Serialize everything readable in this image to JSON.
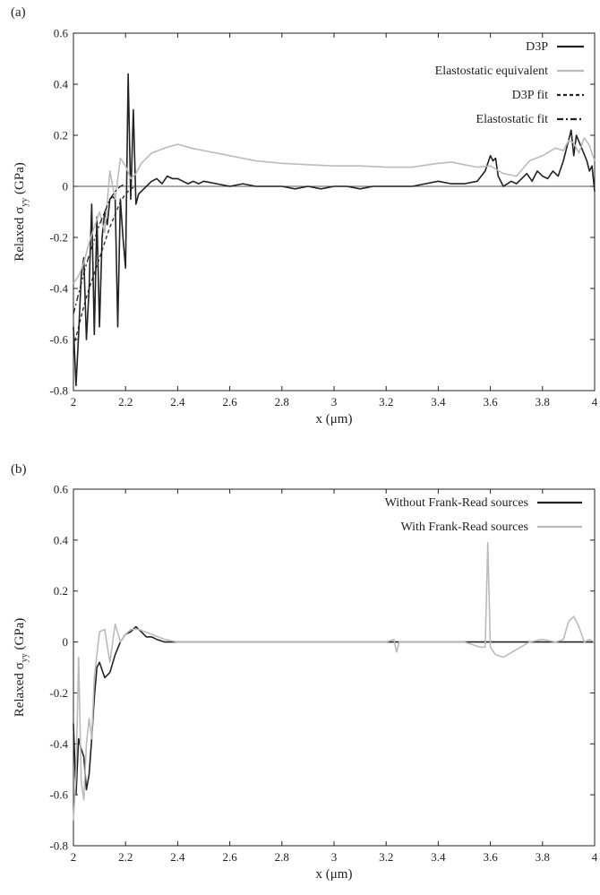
{
  "chart_data": [
    {
      "type": "line",
      "panel_label": "(a)",
      "xlabel": "x (μm)",
      "ylabel_main": "Relaxed σ",
      "ylabel_sub": "yy",
      "ylabel_unit": " (GPa)",
      "xlim": [
        2,
        4
      ],
      "ylim": [
        -0.8,
        0.6
      ],
      "xticks": [
        2,
        2.2,
        2.4,
        2.6,
        2.8,
        3,
        3.2,
        3.4,
        3.6,
        3.8,
        4
      ],
      "xtick_labels": [
        "2",
        "2.2",
        "2.4",
        "2.6",
        "2.8",
        "3",
        "3.2",
        "3.4",
        "3.6",
        "3.8",
        "4"
      ],
      "yticks": [
        -0.8,
        -0.6,
        -0.4,
        -0.2,
        0,
        0.2,
        0.4,
        0.6
      ],
      "ytick_labels": [
        "-0.8",
        "-0.6",
        "-0.4",
        "-0.2",
        "0",
        "0.2",
        "0.4",
        "0.6"
      ],
      "zero_line": true,
      "legend_position": "top-right",
      "series": [
        {
          "name": "D3P",
          "color": "#222222",
          "style": "solid",
          "x": [
            2.0,
            2.01,
            2.02,
            2.03,
            2.04,
            2.05,
            2.06,
            2.07,
            2.08,
            2.09,
            2.1,
            2.11,
            2.12,
            2.13,
            2.14,
            2.15,
            2.16,
            2.17,
            2.18,
            2.19,
            2.2,
            2.21,
            2.22,
            2.23,
            2.24,
            2.25,
            2.26,
            2.28,
            2.3,
            2.32,
            2.34,
            2.36,
            2.38,
            2.4,
            2.42,
            2.44,
            2.46,
            2.48,
            2.5,
            2.55,
            2.6,
            2.65,
            2.7,
            2.75,
            2.8,
            2.85,
            2.9,
            2.95,
            3.0,
            3.05,
            3.1,
            3.15,
            3.2,
            3.25,
            3.3,
            3.35,
            3.4,
            3.45,
            3.5,
            3.55,
            3.58,
            3.6,
            3.61,
            3.62,
            3.63,
            3.65,
            3.68,
            3.7,
            3.72,
            3.74,
            3.76,
            3.78,
            3.8,
            3.82,
            3.84,
            3.86,
            3.88,
            3.9,
            3.91,
            3.92,
            3.93,
            3.95,
            3.97,
            3.98,
            3.99,
            4.0
          ],
          "y": [
            -0.55,
            -0.78,
            -0.58,
            -0.35,
            -0.28,
            -0.6,
            -0.4,
            -0.07,
            -0.58,
            -0.12,
            -0.55,
            -0.2,
            -0.1,
            -0.15,
            -0.05,
            -0.04,
            -0.05,
            -0.55,
            -0.05,
            -0.2,
            -0.32,
            0.44,
            -0.05,
            0.3,
            -0.07,
            -0.03,
            -0.02,
            0.0,
            0.02,
            0.03,
            0.01,
            0.04,
            0.03,
            0.03,
            0.02,
            0.01,
            0.02,
            0.01,
            0.02,
            0.01,
            0.0,
            0.01,
            0.0,
            0.0,
            0.0,
            -0.01,
            0.0,
            -0.01,
            0.0,
            0.0,
            -0.01,
            0.0,
            0.0,
            0.0,
            0.0,
            0.01,
            0.02,
            0.01,
            0.01,
            0.02,
            0.06,
            0.12,
            0.1,
            0.11,
            0.04,
            0.0,
            0.02,
            0.01,
            0.03,
            0.05,
            0.02,
            0.06,
            0.04,
            0.03,
            0.06,
            0.04,
            0.1,
            0.18,
            0.22,
            0.12,
            0.2,
            0.15,
            0.1,
            0.06,
            0.08,
            -0.02
          ]
        },
        {
          "name": "Elastostatic equivalent",
          "color": "#bbbbbb",
          "style": "solid",
          "x": [
            2.0,
            2.02,
            2.04,
            2.06,
            2.08,
            2.1,
            2.12,
            2.14,
            2.16,
            2.18,
            2.2,
            2.22,
            2.24,
            2.26,
            2.3,
            2.35,
            2.4,
            2.45,
            2.5,
            2.6,
            2.7,
            2.8,
            2.9,
            3.0,
            3.1,
            3.2,
            3.3,
            3.4,
            3.45,
            3.5,
            3.55,
            3.6,
            3.65,
            3.7,
            3.75,
            3.8,
            3.85,
            3.88,
            3.9,
            3.92,
            3.94,
            3.96,
            3.98,
            4.0
          ],
          "y": [
            -0.38,
            -0.35,
            -0.3,
            -0.22,
            -0.16,
            -0.1,
            -0.18,
            0.06,
            -0.05,
            0.11,
            0.08,
            0.03,
            0.05,
            0.09,
            0.13,
            0.15,
            0.165,
            0.15,
            0.14,
            0.12,
            0.1,
            0.09,
            0.085,
            0.08,
            0.08,
            0.075,
            0.075,
            0.09,
            0.095,
            0.085,
            0.075,
            0.08,
            0.05,
            0.04,
            0.1,
            0.12,
            0.15,
            0.14,
            0.18,
            0.17,
            0.13,
            0.19,
            0.16,
            0.1
          ]
        },
        {
          "name": "D3P fit",
          "color": "#222222",
          "style": "dashed",
          "x": [
            2.0,
            2.02,
            2.04,
            2.06,
            2.08,
            2.1,
            2.12,
            2.14,
            2.16,
            2.18,
            2.2,
            2.22,
            2.24
          ],
          "y": [
            -0.63,
            -0.55,
            -0.47,
            -0.4,
            -0.34,
            -0.28,
            -0.22,
            -0.16,
            -0.11,
            -0.06,
            -0.03,
            -0.01,
            0.0
          ]
        },
        {
          "name": "Elastostatic fit",
          "color": "#222222",
          "style": "dashdot",
          "x": [
            2.0,
            2.02,
            2.04,
            2.06,
            2.08,
            2.1,
            2.12,
            2.14,
            2.16,
            2.18,
            2.2
          ],
          "y": [
            -0.5,
            -0.42,
            -0.34,
            -0.27,
            -0.21,
            -0.15,
            -0.1,
            -0.05,
            -0.02,
            0.0,
            0.01
          ]
        }
      ]
    },
    {
      "type": "line",
      "panel_label": "(b)",
      "xlabel": "x (μm)",
      "ylabel_main": "Relaxed σ",
      "ylabel_sub": "yy",
      "ylabel_unit": " (GPa)",
      "xlim": [
        2,
        4
      ],
      "ylim": [
        -0.8,
        0.6
      ],
      "xticks": [
        2,
        2.2,
        2.4,
        2.6,
        2.8,
        3,
        3.2,
        3.4,
        3.6,
        3.8,
        4
      ],
      "xtick_labels": [
        "2",
        "2.2",
        "2.4",
        "2.6",
        "2.8",
        "3",
        "3.2",
        "3.4",
        "3.6",
        "3.8",
        "4"
      ],
      "yticks": [
        -0.8,
        -0.6,
        -0.4,
        -0.2,
        0,
        0.2,
        0.4,
        0.6
      ],
      "ytick_labels": [
        "-0.8",
        "-0.6",
        "-0.4",
        "-0.2",
        "0",
        "0.2",
        "0.4",
        "0.6"
      ],
      "zero_line": false,
      "legend_position": "top-right",
      "series": [
        {
          "name": "Without Frank-Read sources",
          "color": "#222222",
          "style": "solid",
          "x": [
            2.0,
            2.01,
            2.02,
            2.03,
            2.04,
            2.05,
            2.06,
            2.07,
            2.08,
            2.09,
            2.1,
            2.12,
            2.14,
            2.16,
            2.18,
            2.2,
            2.22,
            2.24,
            2.26,
            2.28,
            2.3,
            2.32,
            2.35,
            2.4,
            2.5,
            3.0,
            3.5,
            4.0
          ],
          "y": [
            -0.32,
            -0.6,
            -0.38,
            -0.42,
            -0.45,
            -0.58,
            -0.52,
            -0.38,
            -0.22,
            -0.1,
            -0.08,
            -0.14,
            -0.12,
            -0.05,
            0.0,
            0.03,
            0.04,
            0.06,
            0.04,
            0.02,
            0.02,
            0.01,
            0.0,
            0.0,
            0.0,
            0.0,
            0.0,
            0.0
          ]
        },
        {
          "name": "With Frank-Read sources",
          "color": "#bbbbbb",
          "style": "solid",
          "x": [
            2.0,
            2.01,
            2.02,
            2.03,
            2.04,
            2.05,
            2.06,
            2.07,
            2.08,
            2.1,
            2.12,
            2.14,
            2.16,
            2.18,
            2.2,
            2.22,
            2.25,
            2.3,
            2.35,
            2.4,
            2.5,
            2.8,
            3.0,
            3.2,
            3.23,
            3.24,
            3.25,
            3.3,
            3.5,
            3.56,
            3.58,
            3.59,
            3.6,
            3.62,
            3.65,
            3.7,
            3.75,
            3.8,
            3.85,
            3.88,
            3.9,
            3.92,
            3.94,
            3.96,
            3.98,
            4.0
          ],
          "y": [
            -0.7,
            -0.52,
            -0.06,
            -0.55,
            -0.62,
            -0.4,
            -0.3,
            -0.38,
            -0.14,
            0.04,
            0.05,
            -0.08,
            0.07,
            0.0,
            0.03,
            0.05,
            0.05,
            0.03,
            0.01,
            0.0,
            0.0,
            0.0,
            0.0,
            0.0,
            0.01,
            -0.04,
            0.0,
            0.0,
            0.0,
            -0.02,
            -0.02,
            0.39,
            -0.02,
            -0.05,
            -0.06,
            -0.03,
            0.0,
            0.01,
            0.0,
            0.01,
            0.08,
            0.1,
            0.06,
            0.0,
            0.01,
            0.0
          ]
        }
      ]
    }
  ]
}
